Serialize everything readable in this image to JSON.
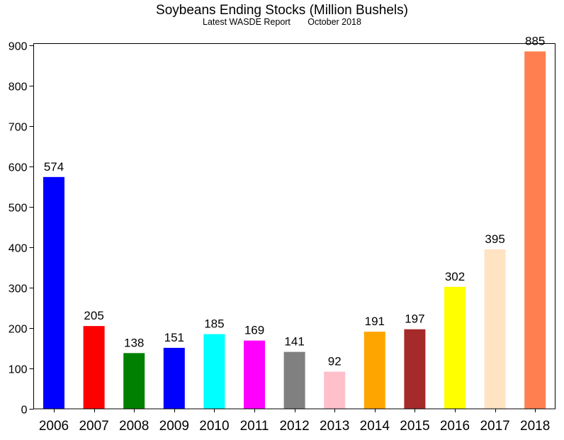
{
  "chart_data": {
    "type": "bar",
    "title": "Soybeans Ending Stocks (Million Bushels)",
    "subtitle": "Latest WASDE Report       October 2018",
    "xlabel": "",
    "ylabel": "",
    "ylim": [
      0,
      920
    ],
    "yticks": [
      "0",
      "100",
      "200",
      "300",
      "400",
      "500",
      "600",
      "700",
      "800",
      "900"
    ],
    "ytick_values": [
      0,
      100,
      200,
      300,
      400,
      500,
      600,
      700,
      800,
      900
    ],
    "grid": false,
    "legend": "none",
    "categories": [
      "2006",
      "2007",
      "2008",
      "2009",
      "2010",
      "2011",
      "2012",
      "2013",
      "2014",
      "2015",
      "2016",
      "2017",
      "2018"
    ],
    "values": [
      574,
      205,
      138,
      151,
      185,
      169,
      141,
      92,
      191,
      197,
      302,
      395,
      885
    ],
    "value_labels": [
      "574",
      "205",
      "138",
      "151",
      "185",
      "169",
      "141",
      "92",
      "191",
      "197",
      "302",
      "395",
      "885"
    ],
    "colors": [
      "#0000ff",
      "#ff0000",
      "#008000",
      "#0000ff",
      "#00ffff",
      "#ff00ff",
      "#808080",
      "#ffc0cb",
      "#ffa500",
      "#a52a2a",
      "#ffff00",
      "#ffe4c4",
      "#ff7f50"
    ]
  }
}
